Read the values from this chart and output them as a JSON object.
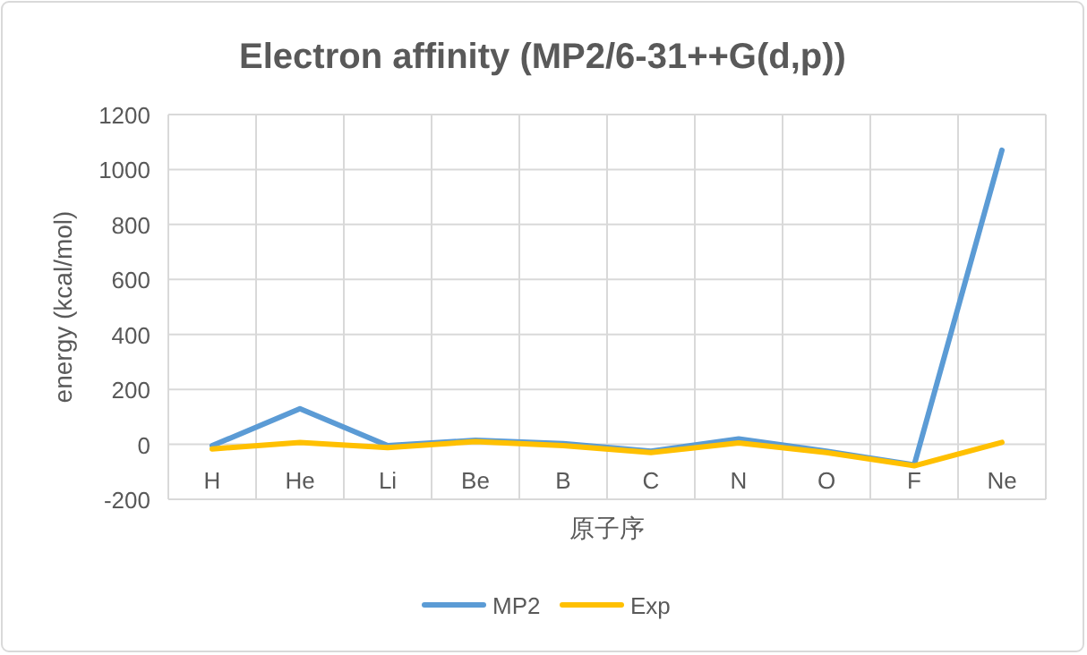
{
  "chart_data": {
    "type": "line",
    "title": "Electron affinity (MP2/6-31++G(d,p))",
    "xlabel": "原子序",
    "ylabel": "energy (kcal/mol)",
    "categories": [
      "H",
      "He",
      "Li",
      "Be",
      "B",
      "C",
      "N",
      "O",
      "F",
      "Ne"
    ],
    "series": [
      {
        "name": "MP2",
        "color": "#5b9bd5",
        "values": [
          -5,
          130,
          -5,
          15,
          3,
          -25,
          20,
          -25,
          -75,
          1070
        ]
      },
      {
        "name": "Exp",
        "color": "#ffc000",
        "values": [
          -17,
          7,
          -12,
          10,
          -5,
          -30,
          5,
          -30,
          -78,
          7
        ]
      }
    ],
    "ylim": [
      -200,
      1200
    ],
    "yticks": [
      -200,
      0,
      200,
      400,
      600,
      800,
      1000,
      1200
    ],
    "grid": true,
    "legend": "bottom",
    "marker": "none",
    "line_style": "solid"
  }
}
